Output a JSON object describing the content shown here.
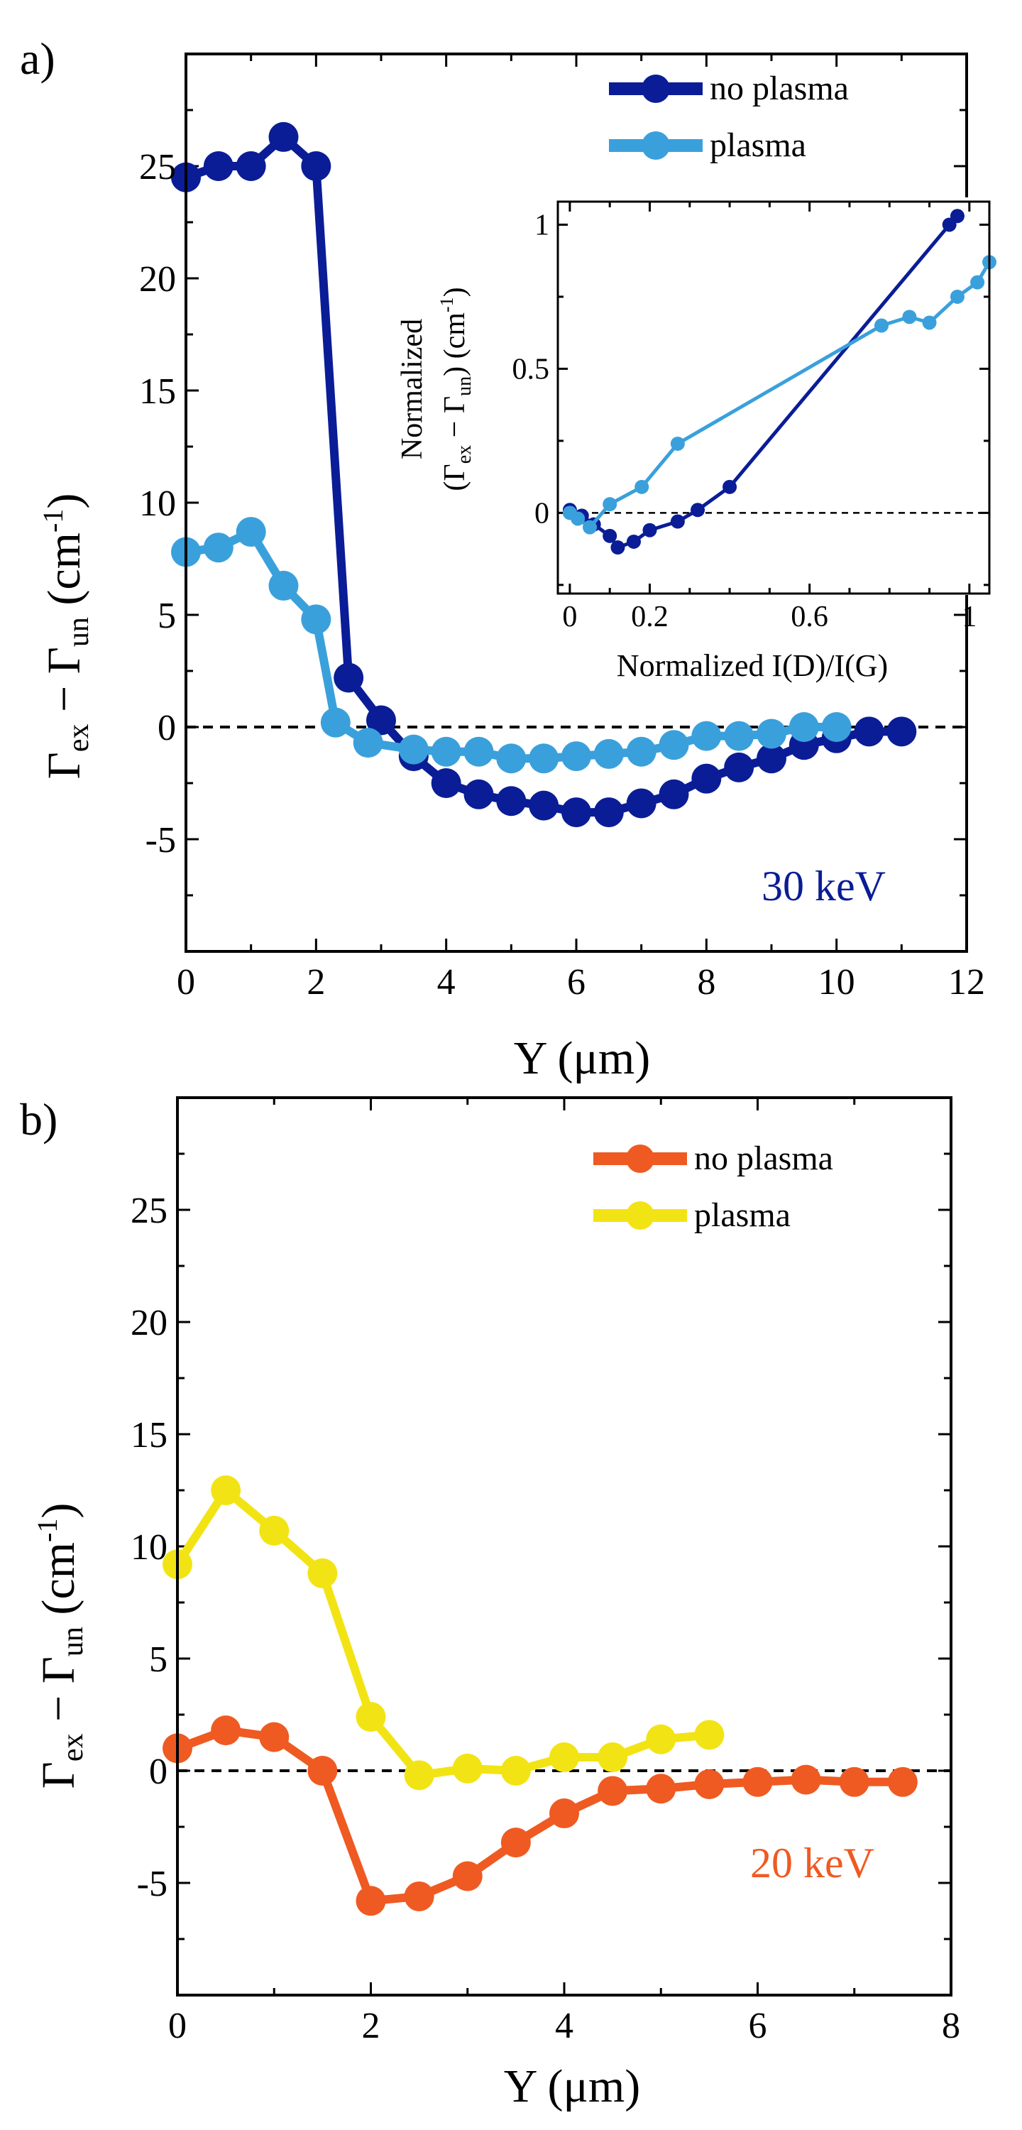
{
  "chart_data": [
    {
      "type": "line",
      "panel_label": "a)",
      "annotation": "30 keV",
      "xlabel": "Y (μm)",
      "ylabel": {
        "main": "Γ",
        "sub1": "ex",
        "mid": " − Γ",
        "sub2": "un",
        "unit": " (cm",
        "sup": "-1",
        "close": ")"
      },
      "xlim": [
        0,
        12
      ],
      "ylim": [
        -10,
        30
      ],
      "xticks": [
        0,
        2,
        4,
        6,
        8,
        10,
        12
      ],
      "yticks": [
        -5,
        0,
        5,
        10,
        15,
        20,
        25
      ],
      "legend_position": "top-right",
      "series": [
        {
          "name": "no plasma",
          "color": "#0a1d96",
          "x": [
            0,
            0.5,
            1,
            1.5,
            2,
            2.5,
            3,
            3.5,
            4,
            4.5,
            5,
            5.5,
            6,
            6.5,
            7,
            7.5,
            8,
            8.5,
            9,
            9.5,
            10,
            10.5,
            11
          ],
          "y": [
            24.5,
            25,
            25,
            26.3,
            25,
            2.2,
            0.3,
            -1.3,
            -2.5,
            -3.0,
            -3.3,
            -3.5,
            -3.8,
            -3.8,
            -3.4,
            -3.0,
            -2.3,
            -1.8,
            -1.4,
            -0.8,
            -0.5,
            -0.2,
            -0.2
          ]
        },
        {
          "name": "plasma",
          "color": "#3aa0dc",
          "x": [
            0,
            0.5,
            1,
            1.5,
            2,
            2.3,
            2.8,
            3.5,
            4,
            4.5,
            5,
            5.5,
            6,
            6.5,
            7,
            7.5,
            8,
            8.5,
            9,
            9.5,
            10
          ],
          "y": [
            7.8,
            8,
            8.7,
            6.3,
            4.8,
            0.2,
            -0.7,
            -1.0,
            -1.1,
            -1.1,
            -1.4,
            -1.4,
            -1.3,
            -1.2,
            -1.1,
            -0.8,
            -0.4,
            -0.4,
            -0.3,
            0,
            0
          ]
        }
      ],
      "inset": {
        "xlabel": "Normalized  I(D)/I(G)",
        "ylabel_line1": "Normalized",
        "ylabel_line2": {
          "open": "(Γ",
          "sub1": "ex",
          "mid": " − Γ",
          "sub2": "un",
          "close": ") (cm",
          "sup": "-1",
          "end": ")"
        },
        "xlim": [
          -0.03,
          1.05
        ],
        "ylim": [
          -0.28,
          1.08
        ],
        "xticks": [
          "0",
          "0.2",
          "0.6",
          "1"
        ],
        "xtick_values": [
          0,
          0.2,
          0.6,
          1
        ],
        "yticks": [
          "0",
          "0.5",
          "1"
        ],
        "ytick_values": [
          0,
          0.5,
          1
        ],
        "series": [
          {
            "name": "no plasma",
            "color": "#0a1d96",
            "x": [
              0,
              0.03,
              0.06,
              0.1,
              0.12,
              0.16,
              0.2,
              0.27,
              0.32,
              0.4,
              0.95,
              0.97
            ],
            "y": [
              0.01,
              -0.01,
              -0.04,
              -0.08,
              -0.12,
              -0.1,
              -0.06,
              -0.03,
              0.01,
              0.09,
              1.0,
              1.03
            ]
          },
          {
            "name": "plasma",
            "color": "#3aa0dc",
            "x": [
              0,
              0.02,
              0.05,
              0.1,
              0.18,
              0.27,
              0.78,
              0.85,
              0.9,
              0.97,
              1.02,
              1.05
            ],
            "y": [
              0.0,
              -0.02,
              -0.05,
              0.03,
              0.09,
              0.24,
              0.65,
              0.68,
              0.66,
              0.75,
              0.8,
              0.87
            ]
          }
        ]
      }
    },
    {
      "type": "line",
      "panel_label": "b)",
      "annotation": "20 keV",
      "xlabel": "Y (μm)",
      "ylabel": {
        "main": "Γ",
        "sub1": "ex",
        "mid": " − Γ",
        "sub2": "un",
        "unit": " (cm",
        "sup": "-1",
        "close": ")"
      },
      "xlim": [
        0,
        8
      ],
      "ylim": [
        -10,
        30
      ],
      "xticks": [
        0,
        2,
        4,
        6,
        8
      ],
      "yticks": [
        -5,
        0,
        5,
        10,
        15,
        20,
        25
      ],
      "legend_position": "top-right",
      "series": [
        {
          "name": "no plasma",
          "color": "#ef5a22",
          "x": [
            0,
            0.5,
            1,
            1.5,
            2,
            2.5,
            3,
            3.5,
            4,
            4.5,
            5,
            5.5,
            6,
            6.5,
            7,
            7.5
          ],
          "y": [
            1,
            1.8,
            1.5,
            0,
            -5.8,
            -5.6,
            -4.7,
            -3.2,
            -1.9,
            -0.9,
            -0.8,
            -0.6,
            -0.5,
            -0.4,
            -0.5,
            -0.5
          ]
        },
        {
          "name": "plasma",
          "color": "#f2e414",
          "x": [
            0,
            0.5,
            1,
            1.5,
            2,
            2.5,
            3,
            3.5,
            4,
            4.5,
            5,
            5.5
          ],
          "y": [
            9.2,
            12.5,
            10.7,
            8.8,
            2.4,
            -0.2,
            0.1,
            0,
            0.6,
            0.6,
            1.4,
            1.6
          ]
        }
      ]
    }
  ]
}
